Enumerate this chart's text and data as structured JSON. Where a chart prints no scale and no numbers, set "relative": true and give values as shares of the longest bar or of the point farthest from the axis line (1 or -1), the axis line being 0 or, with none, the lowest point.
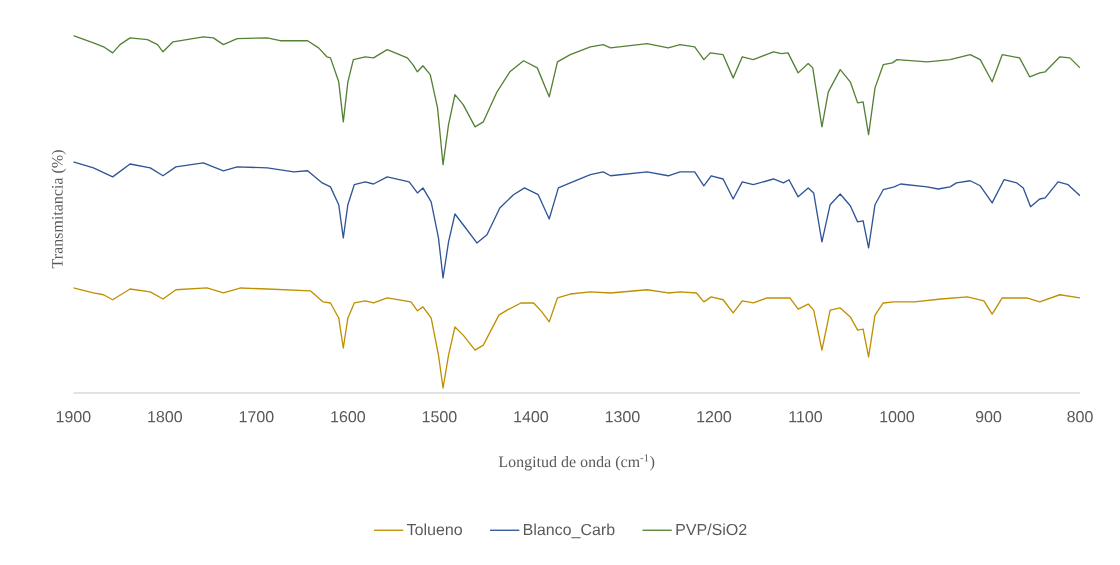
{
  "chart_data": {
    "type": "line",
    "relative": true,
    "xlabel": "Longitud de onda (cm$^{-1}$)",
    "ylabel": "Transmitancia (%)",
    "xlim": [
      1900,
      800
    ],
    "xticks": [
      1900,
      1800,
      1700,
      1600,
      1500,
      1400,
      1300,
      1200,
      1100,
      1000,
      900,
      800
    ],
    "legend": "bottom",
    "series": [
      {
        "name": "Tolueno",
        "color": "#bf9000",
        "x": [
          1900,
          1878,
          1867,
          1857,
          1838,
          1816,
          1802,
          1788,
          1754,
          1736,
          1717,
          1688,
          1641,
          1627,
          1619,
          1610,
          1605,
          1600,
          1593,
          1581,
          1572,
          1557,
          1531,
          1524,
          1518,
          1509,
          1501,
          1496,
          1490,
          1483,
          1474,
          1461,
          1452,
          1435,
          1426,
          1411,
          1397,
          1388,
          1380,
          1371,
          1357,
          1335,
          1313,
          1273,
          1250,
          1237,
          1219,
          1211,
          1203,
          1190,
          1179,
          1169,
          1157,
          1142,
          1117,
          1108,
          1097,
          1091,
          1082,
          1073,
          1062,
          1051,
          1043,
          1037,
          1031,
          1024,
          1015,
          1003,
          981,
          952,
          923,
          905,
          896,
          885,
          858,
          844,
          822,
          800
        ],
        "values": [
          0.294,
          0.28,
          0.275,
          0.261,
          0.291,
          0.283,
          0.263,
          0.289,
          0.294,
          0.28,
          0.294,
          0.291,
          0.286,
          0.255,
          0.252,
          0.21,
          0.126,
          0.21,
          0.252,
          0.258,
          0.252,
          0.266,
          0.255,
          0.23,
          0.241,
          0.21,
          0.106,
          0.014,
          0.106,
          0.185,
          0.162,
          0.12,
          0.134,
          0.218,
          0.232,
          0.252,
          0.252,
          0.227,
          0.199,
          0.266,
          0.277,
          0.283,
          0.28,
          0.289,
          0.28,
          0.283,
          0.28,
          0.255,
          0.269,
          0.261,
          0.224,
          0.258,
          0.252,
          0.266,
          0.266,
          0.235,
          0.249,
          0.232,
          0.12,
          0.232,
          0.238,
          0.213,
          0.176,
          0.179,
          0.101,
          0.218,
          0.252,
          0.255,
          0.255,
          0.263,
          0.269,
          0.258,
          0.221,
          0.266,
          0.266,
          0.255,
          0.275,
          0.266
        ]
      },
      {
        "name": "Blanco_Carb",
        "color": "#2f5597",
        "x": [
          1900,
          1878,
          1857,
          1838,
          1816,
          1802,
          1788,
          1758,
          1736,
          1721,
          1688,
          1659,
          1644,
          1628,
          1619,
          1610,
          1605,
          1600,
          1593,
          1581,
          1572,
          1557,
          1533,
          1524,
          1518,
          1509,
          1501,
          1496,
          1490,
          1483,
          1474,
          1459,
          1448,
          1434,
          1419,
          1407,
          1392,
          1380,
          1370,
          1357,
          1335,
          1321,
          1313,
          1273,
          1250,
          1237,
          1221,
          1211,
          1203,
          1190,
          1179,
          1169,
          1157,
          1135,
          1124,
          1118,
          1108,
          1097,
          1091,
          1082,
          1073,
          1062,
          1051,
          1043,
          1037,
          1031,
          1024,
          1015,
          1003,
          996,
          967,
          955,
          942,
          935,
          920,
          909,
          896,
          883,
          869,
          862,
          854,
          844,
          838,
          824,
          813,
          800
        ],
        "values": [
          0.647,
          0.63,
          0.605,
          0.641,
          0.63,
          0.608,
          0.633,
          0.644,
          0.622,
          0.633,
          0.63,
          0.619,
          0.622,
          0.588,
          0.577,
          0.527,
          0.434,
          0.527,
          0.583,
          0.591,
          0.585,
          0.605,
          0.591,
          0.56,
          0.574,
          0.535,
          0.434,
          0.322,
          0.423,
          0.501,
          0.471,
          0.42,
          0.443,
          0.518,
          0.555,
          0.574,
          0.555,
          0.487,
          0.574,
          0.588,
          0.611,
          0.619,
          0.608,
          0.619,
          0.608,
          0.619,
          0.619,
          0.58,
          0.608,
          0.599,
          0.543,
          0.591,
          0.583,
          0.599,
          0.588,
          0.597,
          0.549,
          0.574,
          0.56,
          0.423,
          0.527,
          0.557,
          0.524,
          0.479,
          0.482,
          0.406,
          0.527,
          0.569,
          0.577,
          0.585,
          0.577,
          0.571,
          0.577,
          0.588,
          0.594,
          0.58,
          0.532,
          0.597,
          0.588,
          0.574,
          0.521,
          0.543,
          0.546,
          0.591,
          0.583,
          0.552
        ]
      },
      {
        "name": "PVP/SiO2",
        "color": "#548235",
        "x": [
          1900,
          1878,
          1867,
          1857,
          1849,
          1838,
          1819,
          1808,
          1802,
          1791,
          1758,
          1747,
          1736,
          1721,
          1688,
          1674,
          1644,
          1632,
          1623,
          1619,
          1610,
          1605,
          1600,
          1594,
          1581,
          1572,
          1557,
          1535,
          1529,
          1524,
          1518,
          1510,
          1502,
          1496,
          1490,
          1483,
          1474,
          1461,
          1452,
          1437,
          1423,
          1408,
          1393,
          1384,
          1380,
          1371,
          1357,
          1335,
          1321,
          1313,
          1273,
          1250,
          1237,
          1221,
          1211,
          1204,
          1190,
          1179,
          1169,
          1157,
          1135,
          1126,
          1119,
          1108,
          1097,
          1092,
          1082,
          1075,
          1062,
          1051,
          1043,
          1037,
          1031,
          1024,
          1015,
          1005,
          1000,
          967,
          942,
          920,
          909,
          896,
          885,
          866,
          855,
          844,
          838,
          822,
          811,
          800
        ],
        "values": [
          1.0,
          0.98,
          0.969,
          0.952,
          0.975,
          0.994,
          0.989,
          0.975,
          0.955,
          0.983,
          0.997,
          0.994,
          0.975,
          0.992,
          0.994,
          0.986,
          0.986,
          0.966,
          0.941,
          0.938,
          0.871,
          0.759,
          0.871,
          0.933,
          0.941,
          0.938,
          0.961,
          0.938,
          0.919,
          0.899,
          0.916,
          0.891,
          0.798,
          0.639,
          0.751,
          0.835,
          0.807,
          0.745,
          0.759,
          0.843,
          0.899,
          0.93,
          0.91,
          0.854,
          0.829,
          0.927,
          0.947,
          0.969,
          0.975,
          0.966,
          0.978,
          0.966,
          0.975,
          0.969,
          0.933,
          0.952,
          0.947,
          0.882,
          0.941,
          0.933,
          0.955,
          0.95,
          0.952,
          0.896,
          0.922,
          0.91,
          0.745,
          0.843,
          0.905,
          0.871,
          0.812,
          0.815,
          0.723,
          0.854,
          0.919,
          0.924,
          0.933,
          0.927,
          0.933,
          0.947,
          0.933,
          0.871,
          0.947,
          0.938,
          0.885,
          0.896,
          0.899,
          0.941,
          0.938,
          0.91
        ]
      }
    ]
  }
}
